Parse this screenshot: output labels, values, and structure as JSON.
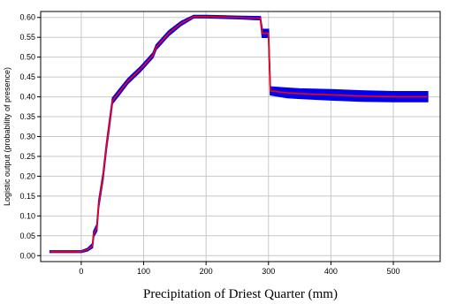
{
  "chart_data": {
    "type": "line",
    "title": "",
    "xlabel": "Precipitation of Driest Quarter (mm)",
    "ylabel": "Logistic output (probability of presence)",
    "xlim": [
      -65,
      575
    ],
    "ylim": [
      -0.015,
      0.615
    ],
    "xticks": [
      0,
      100,
      200,
      300,
      400,
      500
    ],
    "yticks": [
      0.0,
      0.05,
      0.1,
      0.15,
      0.2,
      0.25,
      0.3,
      0.35,
      0.4,
      0.45,
      0.5,
      0.55,
      0.6
    ],
    "grid": true,
    "series": [
      {
        "name": "",
        "role": "mean",
        "color": "#ff0000",
        "points": [
          [
            -50,
            0.01
          ],
          [
            0,
            0.01
          ],
          [
            10,
            0.015
          ],
          [
            18,
            0.025
          ],
          [
            20,
            0.055
          ],
          [
            25,
            0.07
          ],
          [
            28,
            0.13
          ],
          [
            35,
            0.2
          ],
          [
            40,
            0.27
          ],
          [
            45,
            0.33
          ],
          [
            50,
            0.39
          ],
          [
            60,
            0.41
          ],
          [
            75,
            0.44
          ],
          [
            95,
            0.47
          ],
          [
            115,
            0.505
          ],
          [
            120,
            0.525
          ],
          [
            140,
            0.56
          ],
          [
            160,
            0.585
          ],
          [
            180,
            0.602
          ],
          [
            200,
            0.602
          ],
          [
            250,
            0.6
          ],
          [
            287,
            0.598
          ],
          [
            290,
            0.56
          ],
          [
            300,
            0.56
          ],
          [
            303,
            0.415
          ],
          [
            330,
            0.41
          ],
          [
            350,
            0.408
          ],
          [
            400,
            0.405
          ],
          [
            450,
            0.402
          ],
          [
            500,
            0.4
          ],
          [
            555,
            0.4
          ]
        ]
      },
      {
        "name": "",
        "role": "band",
        "color": "#0000ee",
        "x": [
          -50,
          0,
          10,
          18,
          20,
          25,
          28,
          35,
          40,
          45,
          50,
          60,
          75,
          95,
          115,
          120,
          140,
          160,
          180,
          200,
          250,
          287,
          290,
          300,
          303,
          330,
          350,
          400,
          450,
          500,
          555
        ],
        "upper": [
          0.012,
          0.012,
          0.018,
          0.03,
          0.062,
          0.078,
          0.138,
          0.208,
          0.278,
          0.338,
          0.397,
          0.417,
          0.446,
          0.476,
          0.511,
          0.531,
          0.566,
          0.59,
          0.605,
          0.605,
          0.603,
          0.602,
          0.57,
          0.57,
          0.425,
          0.422,
          0.42,
          0.418,
          0.415,
          0.413,
          0.413
        ],
        "lower": [
          0.008,
          0.008,
          0.012,
          0.02,
          0.048,
          0.062,
          0.122,
          0.192,
          0.262,
          0.322,
          0.383,
          0.403,
          0.434,
          0.464,
          0.499,
          0.519,
          0.554,
          0.58,
          0.599,
          0.599,
          0.597,
          0.594,
          0.55,
          0.55,
          0.405,
          0.398,
          0.396,
          0.392,
          0.389,
          0.388,
          0.388
        ]
      }
    ]
  }
}
